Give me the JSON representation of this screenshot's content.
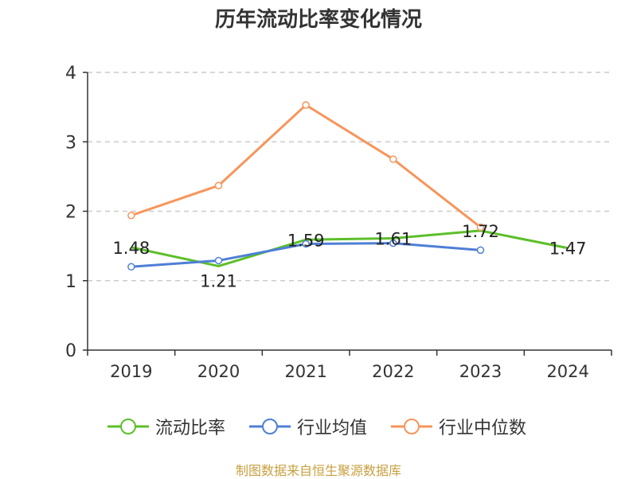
{
  "title": "历年流动比率变化情况",
  "source": "制图数据来自恒生聚源数据库",
  "chart_data": {
    "type": "line",
    "categories": [
      "2019",
      "2020",
      "2021",
      "2022",
      "2023",
      "2024"
    ],
    "ylim": [
      0,
      4
    ],
    "yticks": [
      "0",
      "1",
      "2",
      "3",
      "4"
    ],
    "grid": true,
    "legend_position": "bottom",
    "series": [
      {
        "name": "流动比率",
        "color": "#5cbf2a",
        "values": [
          1.48,
          1.21,
          1.59,
          1.61,
          1.72,
          1.47
        ],
        "labels": [
          "1.48",
          "1.21",
          "1.59",
          "1.61",
          "1.72",
          "1.47"
        ]
      },
      {
        "name": "行业均值",
        "color": "#4e7fd6",
        "values": [
          1.2,
          1.29,
          1.53,
          1.54,
          1.44,
          null
        ]
      },
      {
        "name": "行业中位数",
        "color": "#f7955b",
        "values": [
          1.94,
          2.37,
          3.53,
          2.75,
          1.77,
          null
        ]
      }
    ]
  }
}
